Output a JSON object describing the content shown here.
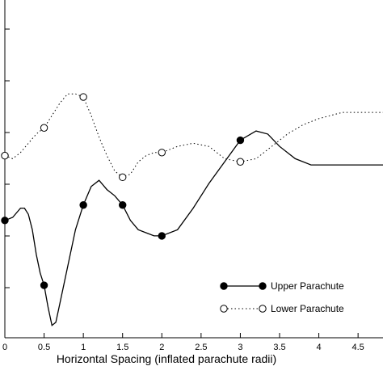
{
  "chart_data": {
    "type": "line",
    "title": "",
    "xlabel": "Horizontal Spacing (inflated parachute radii)",
    "ylabel": "",
    "xlim": [
      0,
      4.9
    ],
    "xticks": [
      "0",
      "0.5",
      "1",
      "1.5",
      "2",
      "2.5",
      "3",
      "3.5",
      "4",
      "4.5"
    ],
    "xtick_values": [
      0,
      0.5,
      1,
      1.5,
      2,
      2.5,
      3,
      3.5,
      4,
      4.5
    ],
    "yrange_norm": [
      0,
      1
    ],
    "grid": false,
    "legend_position": "bottom-right",
    "series": [
      {
        "name": "Upper Parachute",
        "style": "solid",
        "marker": "filled-circle",
        "color": "#000000",
        "points": [
          {
            "x": 0,
            "y": 0.38
          },
          {
            "x": 0.5,
            "y": 0.17
          },
          {
            "x": 1,
            "y": 0.43
          },
          {
            "x": 1.5,
            "y": 0.43
          },
          {
            "x": 2,
            "y": 0.33
          },
          {
            "x": 3,
            "y": 0.64
          }
        ],
        "curve": [
          [
            0,
            0.38
          ],
          [
            0.1,
            0.39
          ],
          [
            0.2,
            0.42
          ],
          [
            0.25,
            0.42
          ],
          [
            0.3,
            0.4
          ],
          [
            0.35,
            0.35
          ],
          [
            0.4,
            0.27
          ],
          [
            0.45,
            0.21
          ],
          [
            0.5,
            0.17
          ],
          [
            0.55,
            0.1
          ],
          [
            0.6,
            0.04
          ],
          [
            0.65,
            0.05
          ],
          [
            0.7,
            0.11
          ],
          [
            0.8,
            0.23
          ],
          [
            0.9,
            0.35
          ],
          [
            1.0,
            0.43
          ],
          [
            1.1,
            0.49
          ],
          [
            1.2,
            0.51
          ],
          [
            1.3,
            0.48
          ],
          [
            1.4,
            0.46
          ],
          [
            1.5,
            0.43
          ],
          [
            1.6,
            0.38
          ],
          [
            1.7,
            0.35
          ],
          [
            1.8,
            0.34
          ],
          [
            1.9,
            0.33
          ],
          [
            2.0,
            0.33
          ],
          [
            2.2,
            0.35
          ],
          [
            2.4,
            0.42
          ],
          [
            2.6,
            0.5
          ],
          [
            2.8,
            0.57
          ],
          [
            3.0,
            0.64
          ],
          [
            3.2,
            0.67
          ],
          [
            3.35,
            0.66
          ],
          [
            3.5,
            0.62
          ],
          [
            3.7,
            0.58
          ],
          [
            3.9,
            0.56
          ],
          [
            4.1,
            0.56
          ],
          [
            4.4,
            0.56
          ],
          [
            4.9,
            0.56
          ]
        ]
      },
      {
        "name": "Lower Parachute",
        "style": "dotted",
        "marker": "open-circle",
        "color": "#000000",
        "points": [
          {
            "x": 0,
            "y": 0.59
          },
          {
            "x": 0.5,
            "y": 0.68
          },
          {
            "x": 1,
            "y": 0.78
          },
          {
            "x": 1.5,
            "y": 0.52
          },
          {
            "x": 2,
            "y": 0.6
          },
          {
            "x": 3,
            "y": 0.57
          }
        ],
        "curve": [
          [
            0,
            0.59
          ],
          [
            0.1,
            0.58
          ],
          [
            0.2,
            0.6
          ],
          [
            0.3,
            0.63
          ],
          [
            0.4,
            0.66
          ],
          [
            0.5,
            0.68
          ],
          [
            0.6,
            0.72
          ],
          [
            0.7,
            0.76
          ],
          [
            0.8,
            0.79
          ],
          [
            0.9,
            0.79
          ],
          [
            1.0,
            0.78
          ],
          [
            1.1,
            0.72
          ],
          [
            1.2,
            0.65
          ],
          [
            1.3,
            0.59
          ],
          [
            1.4,
            0.54
          ],
          [
            1.5,
            0.52
          ],
          [
            1.6,
            0.53
          ],
          [
            1.7,
            0.57
          ],
          [
            1.8,
            0.59
          ],
          [
            1.9,
            0.6
          ],
          [
            2.0,
            0.6
          ],
          [
            2.2,
            0.62
          ],
          [
            2.4,
            0.63
          ],
          [
            2.6,
            0.62
          ],
          [
            2.8,
            0.58
          ],
          [
            3.0,
            0.57
          ],
          [
            3.2,
            0.58
          ],
          [
            3.4,
            0.62
          ],
          [
            3.6,
            0.66
          ],
          [
            3.8,
            0.69
          ],
          [
            4.0,
            0.71
          ],
          [
            4.3,
            0.73
          ],
          [
            4.6,
            0.73
          ],
          [
            4.9,
            0.73
          ]
        ]
      }
    ]
  }
}
